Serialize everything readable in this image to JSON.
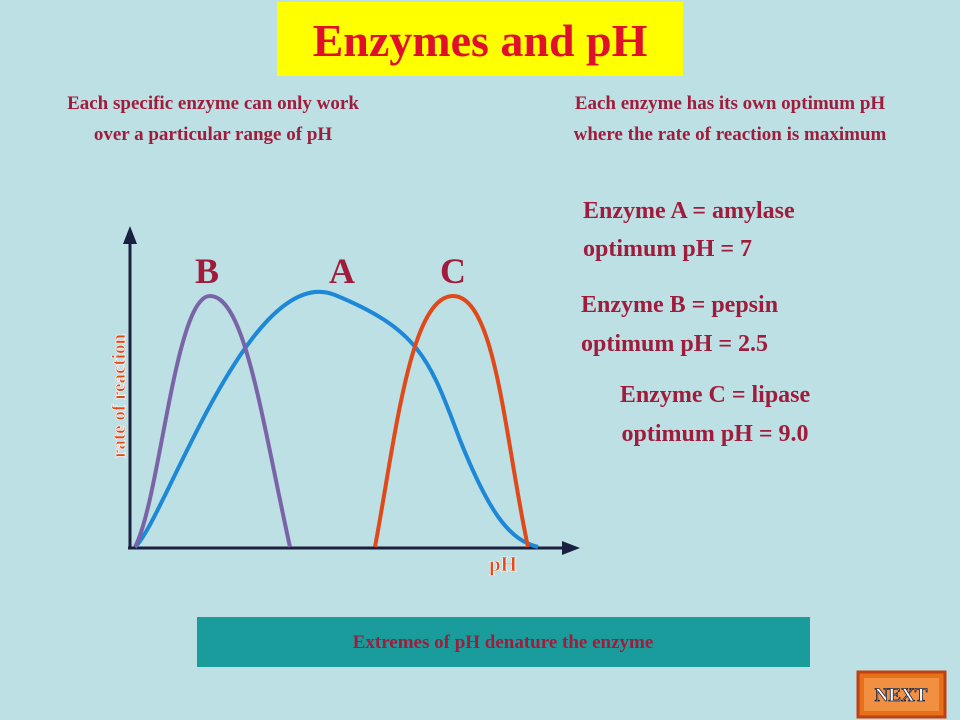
{
  "title": "Enzymes and pH",
  "notes": [
    {
      "lines": [
        "Each specific enzyme can only work",
        "over a particular range of pH"
      ]
    },
    {
      "lines": [
        "Each enzyme has its own optimum pH",
        "where the rate of reaction is maximum"
      ]
    }
  ],
  "graph": {
    "y_axis_label": "rate of reaction",
    "x_axis_label": "pH",
    "curve_labels": [
      "B",
      "A",
      "C"
    ]
  },
  "enzymes": [
    {
      "lines": [
        "Enzyme A = amylase",
        "optimum pH = 7"
      ]
    },
    {
      "lines": [
        "Enzyme B = pepsin",
        "optimum pH = 2.5"
      ]
    },
    {
      "lines": [
        "Enzyme C = lipase",
        "optimum pH = 9.0"
      ]
    }
  ],
  "footer": "Extremes of pH denature the enzyme",
  "button": "NEXT"
}
